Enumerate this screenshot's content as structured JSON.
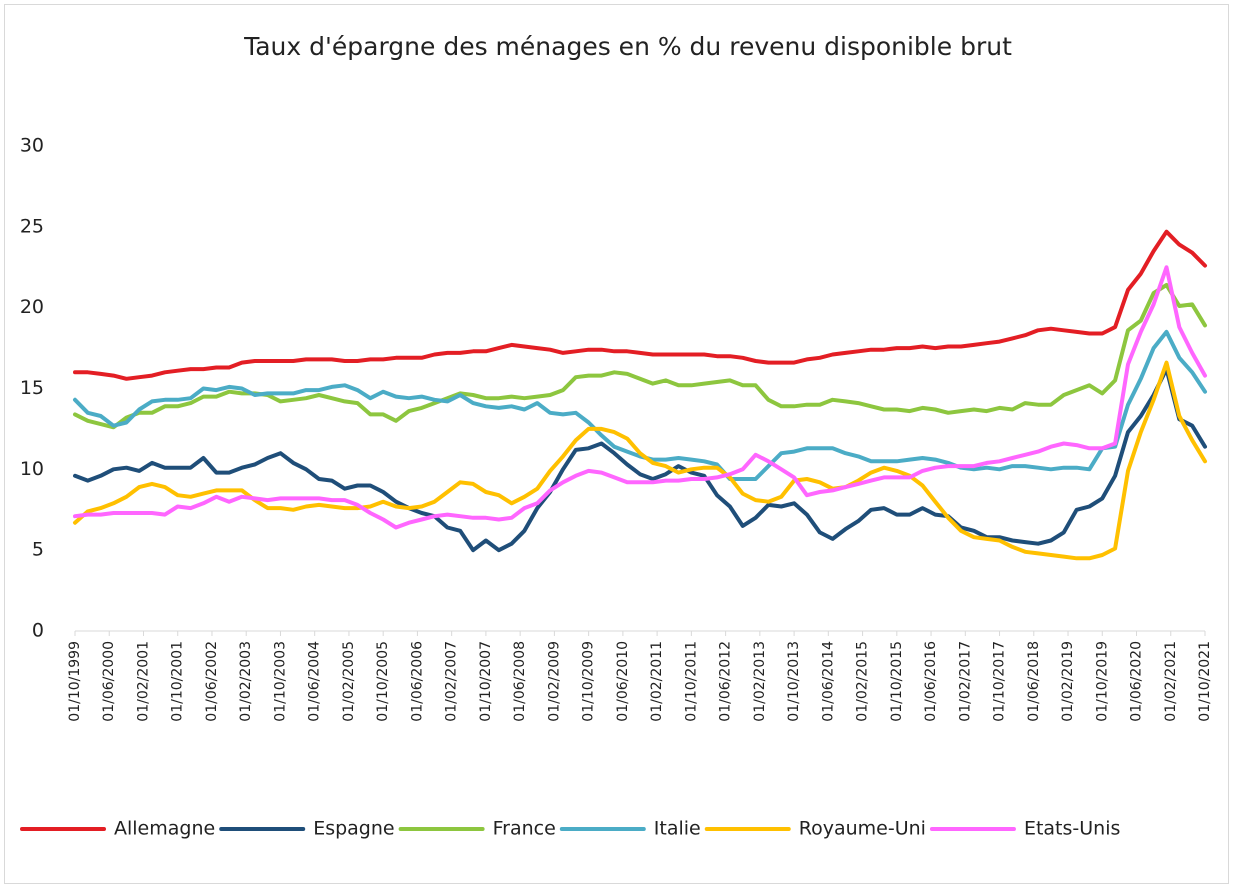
{
  "chart_data": {
    "type": "line",
    "title": "Taux d'épargne des ménages en % du revenu disponible brut",
    "x": [
      "01/10/1999",
      "01/01/2000",
      "01/04/2000",
      "01/07/2000",
      "01/10/2000",
      "01/01/2001",
      "01/04/2001",
      "01/07/2001",
      "01/10/2001",
      "01/01/2002",
      "01/04/2002",
      "01/07/2002",
      "01/10/2002",
      "01/01/2003",
      "01/04/2003",
      "01/07/2003",
      "01/10/2003",
      "01/01/2004",
      "01/04/2004",
      "01/07/2004",
      "01/10/2004",
      "01/01/2005",
      "01/04/2005",
      "01/07/2005",
      "01/10/2005",
      "01/01/2006",
      "01/04/2006",
      "01/07/2006",
      "01/10/2006",
      "01/01/2007",
      "01/04/2007",
      "01/07/2007",
      "01/10/2007",
      "01/01/2008",
      "01/04/2008",
      "01/07/2008",
      "01/10/2008",
      "01/01/2009",
      "01/04/2009",
      "01/07/2009",
      "01/10/2009",
      "01/01/2010",
      "01/04/2010",
      "01/07/2010",
      "01/10/2010",
      "01/01/2011",
      "01/04/2011",
      "01/07/2011",
      "01/10/2011",
      "01/01/2012",
      "01/04/2012",
      "01/07/2012",
      "01/10/2012",
      "01/01/2013",
      "01/04/2013",
      "01/07/2013",
      "01/10/2013",
      "01/01/2014",
      "01/04/2014",
      "01/07/2014",
      "01/10/2014",
      "01/01/2015",
      "01/04/2015",
      "01/07/2015",
      "01/10/2015",
      "01/01/2016",
      "01/04/2016",
      "01/07/2016",
      "01/10/2016",
      "01/01/2017",
      "01/04/2017",
      "01/07/2017",
      "01/10/2017",
      "01/01/2018",
      "01/04/2018",
      "01/07/2018",
      "01/10/2018",
      "01/01/2019",
      "01/04/2019",
      "01/07/2019",
      "01/10/2019",
      "01/01/2020",
      "01/04/2020",
      "01/07/2020",
      "01/10/2020",
      "01/01/2021",
      "01/04/2021",
      "01/07/2021",
      "01/10/2021"
    ],
    "xlim": [
      "01/10/1999",
      "01/10/2021"
    ],
    "xticks": [
      "01/10/1999",
      "01/06/2000",
      "01/02/2001",
      "01/10/2001",
      "01/06/2002",
      "01/02/2003",
      "01/10/2003",
      "01/06/2004",
      "01/02/2005",
      "01/10/2005",
      "01/06/2006",
      "01/02/2007",
      "01/10/2007",
      "01/06/2008",
      "01/02/2009",
      "01/10/2009",
      "01/06/2010",
      "01/02/2011",
      "01/10/2011",
      "01/06/2012",
      "01/02/2013",
      "01/10/2013",
      "01/06/2014",
      "01/02/2015",
      "01/10/2015",
      "01/06/2016",
      "01/02/2017",
      "01/10/2017",
      "01/06/2018",
      "01/02/2019",
      "01/10/2019",
      "01/06/2020",
      "01/02/2021",
      "01/10/2021"
    ],
    "ylim": [
      0,
      30
    ],
    "yticks": [
      0,
      5,
      10,
      15,
      20,
      25,
      30
    ],
    "grid": false,
    "legend": "bottom",
    "series": [
      {
        "name": "Allemagne",
        "color": "#e31e24",
        "values": [
          16.0,
          16.0,
          15.9,
          15.8,
          15.6,
          15.7,
          15.8,
          16.0,
          16.1,
          16.2,
          16.2,
          16.3,
          16.3,
          16.6,
          16.7,
          16.7,
          16.7,
          16.7,
          16.8,
          16.8,
          16.8,
          16.7,
          16.7,
          16.8,
          16.8,
          16.9,
          16.9,
          16.9,
          17.1,
          17.2,
          17.2,
          17.3,
          17.3,
          17.5,
          17.7,
          17.6,
          17.5,
          17.4,
          17.2,
          17.3,
          17.4,
          17.4,
          17.3,
          17.3,
          17.2,
          17.1,
          17.1,
          17.1,
          17.1,
          17.1,
          17.0,
          17.0,
          16.9,
          16.7,
          16.6,
          16.6,
          16.6,
          16.8,
          16.9,
          17.1,
          17.2,
          17.3,
          17.4,
          17.4,
          17.5,
          17.5,
          17.6,
          17.5,
          17.6,
          17.6,
          17.7,
          17.8,
          17.9,
          18.1,
          18.3,
          18.6,
          18.7,
          18.6,
          18.5,
          18.4,
          18.4,
          18.8,
          21.1,
          22.1,
          23.5,
          24.7,
          23.9,
          23.4,
          22.6
        ]
      },
      {
        "name": "Espagne",
        "color": "#1f4e79",
        "values": [
          9.6,
          9.3,
          9.6,
          10.0,
          10.1,
          9.9,
          10.4,
          10.1,
          10.1,
          10.1,
          10.7,
          9.8,
          9.8,
          10.1,
          10.3,
          10.7,
          11.0,
          10.4,
          10.0,
          9.4,
          9.3,
          8.8,
          9.0,
          9.0,
          8.6,
          8.0,
          7.6,
          7.3,
          7.1,
          6.4,
          6.2,
          5.0,
          5.6,
          5.0,
          5.4,
          6.2,
          7.6,
          8.6,
          10.0,
          11.2,
          11.3,
          11.6,
          11.0,
          10.3,
          9.7,
          9.4,
          9.7,
          10.2,
          9.8,
          9.6,
          8.4,
          7.7,
          6.5,
          7.0,
          7.8,
          7.7,
          7.9,
          7.2,
          6.1,
          5.7,
          6.3,
          6.8,
          7.5,
          7.6,
          7.2,
          7.2,
          7.6,
          7.2,
          7.1,
          6.4,
          6.2,
          5.8,
          5.8,
          5.6,
          5.5,
          5.4,
          5.6,
          6.1,
          7.5,
          7.7,
          8.2,
          9.6,
          12.3,
          13.3,
          14.6,
          16.2,
          13.1,
          12.7,
          11.4
        ]
      },
      {
        "name": "France",
        "color": "#8dc63f",
        "values": [
          13.4,
          13.0,
          12.8,
          12.6,
          13.2,
          13.5,
          13.5,
          13.9,
          13.9,
          14.1,
          14.5,
          14.5,
          14.8,
          14.7,
          14.7,
          14.6,
          14.2,
          14.3,
          14.4,
          14.6,
          14.4,
          14.2,
          14.1,
          13.4,
          13.4,
          13.0,
          13.6,
          13.8,
          14.1,
          14.4,
          14.7,
          14.6,
          14.4,
          14.4,
          14.5,
          14.4,
          14.5,
          14.6,
          14.9,
          15.7,
          15.8,
          15.8,
          16.0,
          15.9,
          15.6,
          15.3,
          15.5,
          15.2,
          15.2,
          15.3,
          15.4,
          15.5,
          15.2,
          15.2,
          14.3,
          13.9,
          13.9,
          14.0,
          14.0,
          14.3,
          14.2,
          14.1,
          13.9,
          13.7,
          13.7,
          13.6,
          13.8,
          13.7,
          13.5,
          13.6,
          13.7,
          13.6,
          13.8,
          13.7,
          14.1,
          14.0,
          14.0,
          14.6,
          14.9,
          15.2,
          14.7,
          15.5,
          18.6,
          19.2,
          20.9,
          21.4,
          20.1,
          20.2,
          18.9
        ]
      },
      {
        "name": "Italie",
        "color": "#4bacc6",
        "values": [
          14.3,
          13.5,
          13.3,
          12.7,
          12.9,
          13.7,
          14.2,
          14.3,
          14.3,
          14.4,
          15.0,
          14.9,
          15.1,
          15.0,
          14.6,
          14.7,
          14.7,
          14.7,
          14.9,
          14.9,
          15.1,
          15.2,
          14.9,
          14.4,
          14.8,
          14.5,
          14.4,
          14.5,
          14.3,
          14.2,
          14.6,
          14.1,
          13.9,
          13.8,
          13.9,
          13.7,
          14.1,
          13.5,
          13.4,
          13.5,
          12.9,
          12.1,
          11.4,
          11.1,
          10.8,
          10.6,
          10.6,
          10.7,
          10.6,
          10.5,
          10.3,
          9.4,
          9.4,
          9.4,
          10.2,
          11.0,
          11.1,
          11.3,
          11.3,
          11.3,
          11.0,
          10.8,
          10.5,
          10.5,
          10.5,
          10.6,
          10.7,
          10.6,
          10.4,
          10.1,
          10.0,
          10.1,
          10.0,
          10.2,
          10.2,
          10.1,
          10.0,
          10.1,
          10.1,
          10.0,
          11.3,
          11.4,
          14.0,
          15.6,
          17.5,
          18.5,
          16.9,
          16.0,
          14.8
        ]
      },
      {
        "name": "Royaume-Uni",
        "color": "#ffc000",
        "values": [
          6.7,
          7.4,
          7.6,
          7.9,
          8.3,
          8.9,
          9.1,
          8.9,
          8.4,
          8.3,
          8.5,
          8.7,
          8.7,
          8.7,
          8.1,
          7.6,
          7.6,
          7.5,
          7.7,
          7.8,
          7.7,
          7.6,
          7.6,
          7.7,
          8.0,
          7.7,
          7.6,
          7.7,
          8.0,
          8.6,
          9.2,
          9.1,
          8.6,
          8.4,
          7.9,
          8.3,
          8.8,
          9.9,
          10.8,
          11.8,
          12.5,
          12.5,
          12.3,
          11.9,
          11.0,
          10.4,
          10.2,
          9.8,
          10.0,
          10.1,
          10.1,
          9.5,
          8.5,
          8.1,
          8.0,
          8.3,
          9.3,
          9.4,
          9.2,
          8.8,
          8.9,
          9.3,
          9.8,
          10.1,
          9.9,
          9.6,
          9.0,
          8.0,
          7.0,
          6.2,
          5.8,
          5.7,
          5.6,
          5.2,
          4.9,
          4.8,
          4.7,
          4.6,
          4.5,
          4.5,
          4.7,
          5.1,
          9.9,
          12.3,
          14.3,
          16.6,
          13.3,
          11.8,
          10.5
        ]
      },
      {
        "name": "Etats-Unis",
        "color": "#ff66ff",
        "values": [
          7.1,
          7.2,
          7.2,
          7.3,
          7.3,
          7.3,
          7.3,
          7.2,
          7.7,
          7.6,
          7.9,
          8.3,
          8.0,
          8.3,
          8.2,
          8.1,
          8.2,
          8.2,
          8.2,
          8.2,
          8.1,
          8.1,
          7.8,
          7.3,
          6.9,
          6.4,
          6.7,
          6.9,
          7.1,
          7.2,
          7.1,
          7.0,
          7.0,
          6.9,
          7.0,
          7.6,
          7.9,
          8.7,
          9.2,
          9.6,
          9.9,
          9.8,
          9.5,
          9.2,
          9.2,
          9.2,
          9.3,
          9.3,
          9.4,
          9.4,
          9.5,
          9.7,
          10.0,
          10.9,
          10.5,
          10.0,
          9.5,
          8.4,
          8.6,
          8.7,
          8.9,
          9.1,
          9.3,
          9.5,
          9.5,
          9.5,
          9.9,
          10.1,
          10.2,
          10.2,
          10.2,
          10.4,
          10.5,
          10.7,
          10.9,
          11.1,
          11.4,
          11.6,
          11.5,
          11.3,
          11.3,
          11.6,
          16.5,
          18.5,
          20.2,
          22.5,
          18.8,
          17.2,
          15.8
        ]
      }
    ]
  }
}
